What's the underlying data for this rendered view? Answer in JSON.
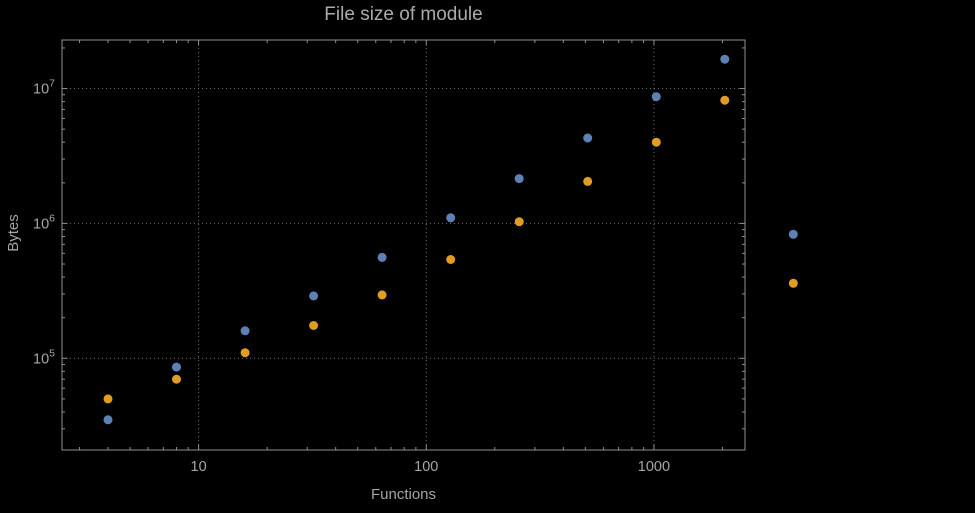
{
  "chart_data": {
    "type": "scatter",
    "title": "File size of module",
    "xlabel": "Functions",
    "ylabel": "Bytes",
    "x_scale": "log",
    "y_scale": "log",
    "grid": "dotted-at-major-ticks",
    "legend": "none",
    "x": [
      4,
      8,
      16,
      32,
      64,
      128,
      256,
      512,
      1024,
      2048,
      4096
    ],
    "series": [
      {
        "name": "series-blue",
        "color": "#5E81B5",
        "values": [
          35000,
          86000,
          160000,
          290000,
          560000,
          1100000,
          2150000,
          4300000,
          8700000,
          16500000,
          830000
        ]
      },
      {
        "name": "series-orange",
        "color": "#E19C24",
        "values": [
          50000,
          70000,
          110000,
          175000,
          295000,
          540000,
          1030000,
          2050000,
          4000000,
          8200000,
          360000
        ]
      }
    ],
    "x_ticks": [
      10,
      100,
      1000
    ],
    "x_tick_labels": [
      "10",
      "100",
      "1000"
    ],
    "y_ticks": [
      100000,
      1000000,
      10000000
    ],
    "y_tick_labels": [
      {
        "base": "10",
        "exp": "5"
      },
      {
        "base": "10",
        "exp": "6"
      },
      {
        "base": "10",
        "exp": "7"
      }
    ],
    "xlim_log10": [
      0.4,
      3.4
    ],
    "ylim_log10": [
      4.32,
      7.36
    ]
  },
  "colors": {
    "background": "#000000",
    "frame": "#8f8f8f",
    "text": "#a6a6a6",
    "grid": "#6f6f6f",
    "series_blue": "#5E81B5",
    "series_orange": "#E19C24"
  }
}
